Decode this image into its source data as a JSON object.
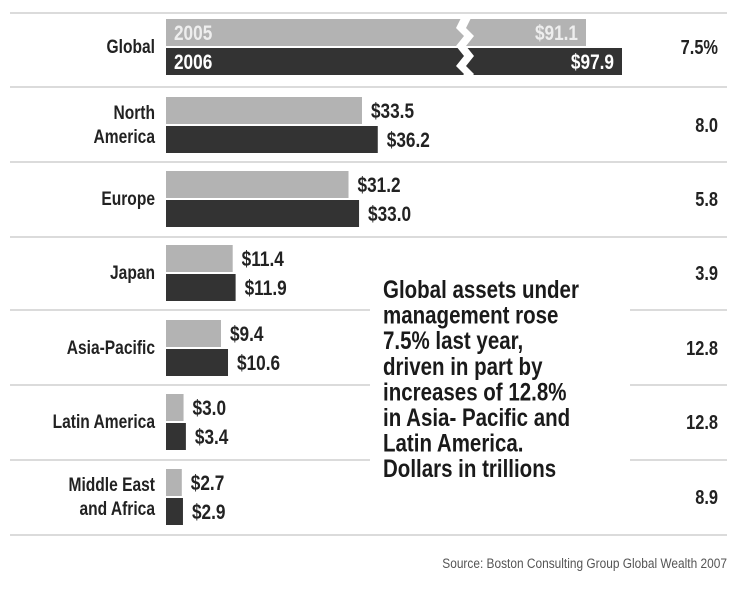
{
  "chart_data": {
    "type": "bar",
    "orientation": "horizontal",
    "categories": [
      "Global",
      "North America",
      "Europe",
      "Japan",
      "Asia-Pacific",
      "Latin America",
      "Middle East and Africa"
    ],
    "category_lines": [
      [
        "Global"
      ],
      [
        "North",
        "America"
      ],
      [
        "Europe"
      ],
      [
        "Japan"
      ],
      [
        "Asia-Pacific"
      ],
      [
        "Latin America"
      ],
      [
        "Middle East",
        "and Africa"
      ]
    ],
    "series": [
      {
        "name": "2005",
        "values": [
          91.1,
          33.5,
          31.2,
          11.4,
          9.4,
          3.0,
          2.7
        ],
        "color": "#b3b3b3"
      },
      {
        "name": "2006",
        "values": [
          97.9,
          36.2,
          33.0,
          11.9,
          10.6,
          3.4,
          2.9
        ],
        "color": "#333333"
      }
    ],
    "value_labels": [
      [
        "$91.1",
        "$33.5",
        "$31.2",
        "$11.4",
        "$9.4",
        "$3.0",
        "$2.7"
      ],
      [
        "$97.9",
        "$36.2",
        "$33.0",
        "$11.9",
        "$10.6",
        "$3.4",
        "$2.9"
      ]
    ],
    "growth_labels": [
      "7.5%",
      "8.0",
      "5.8",
      "3.9",
      "12.8",
      "12.8",
      "8.9"
    ],
    "global_bar_broken": true,
    "annotation_lines": [
      "Global assets under",
      "management rose",
      "7.5% last year,",
      "driven in part by",
      "increases of 12.8%",
      "in Asia- Pacific and",
      "Latin America.",
      "Dollars in trillions"
    ],
    "source": "Source: Boston Consulting Group Global Wealth 2007",
    "grid": false
  }
}
